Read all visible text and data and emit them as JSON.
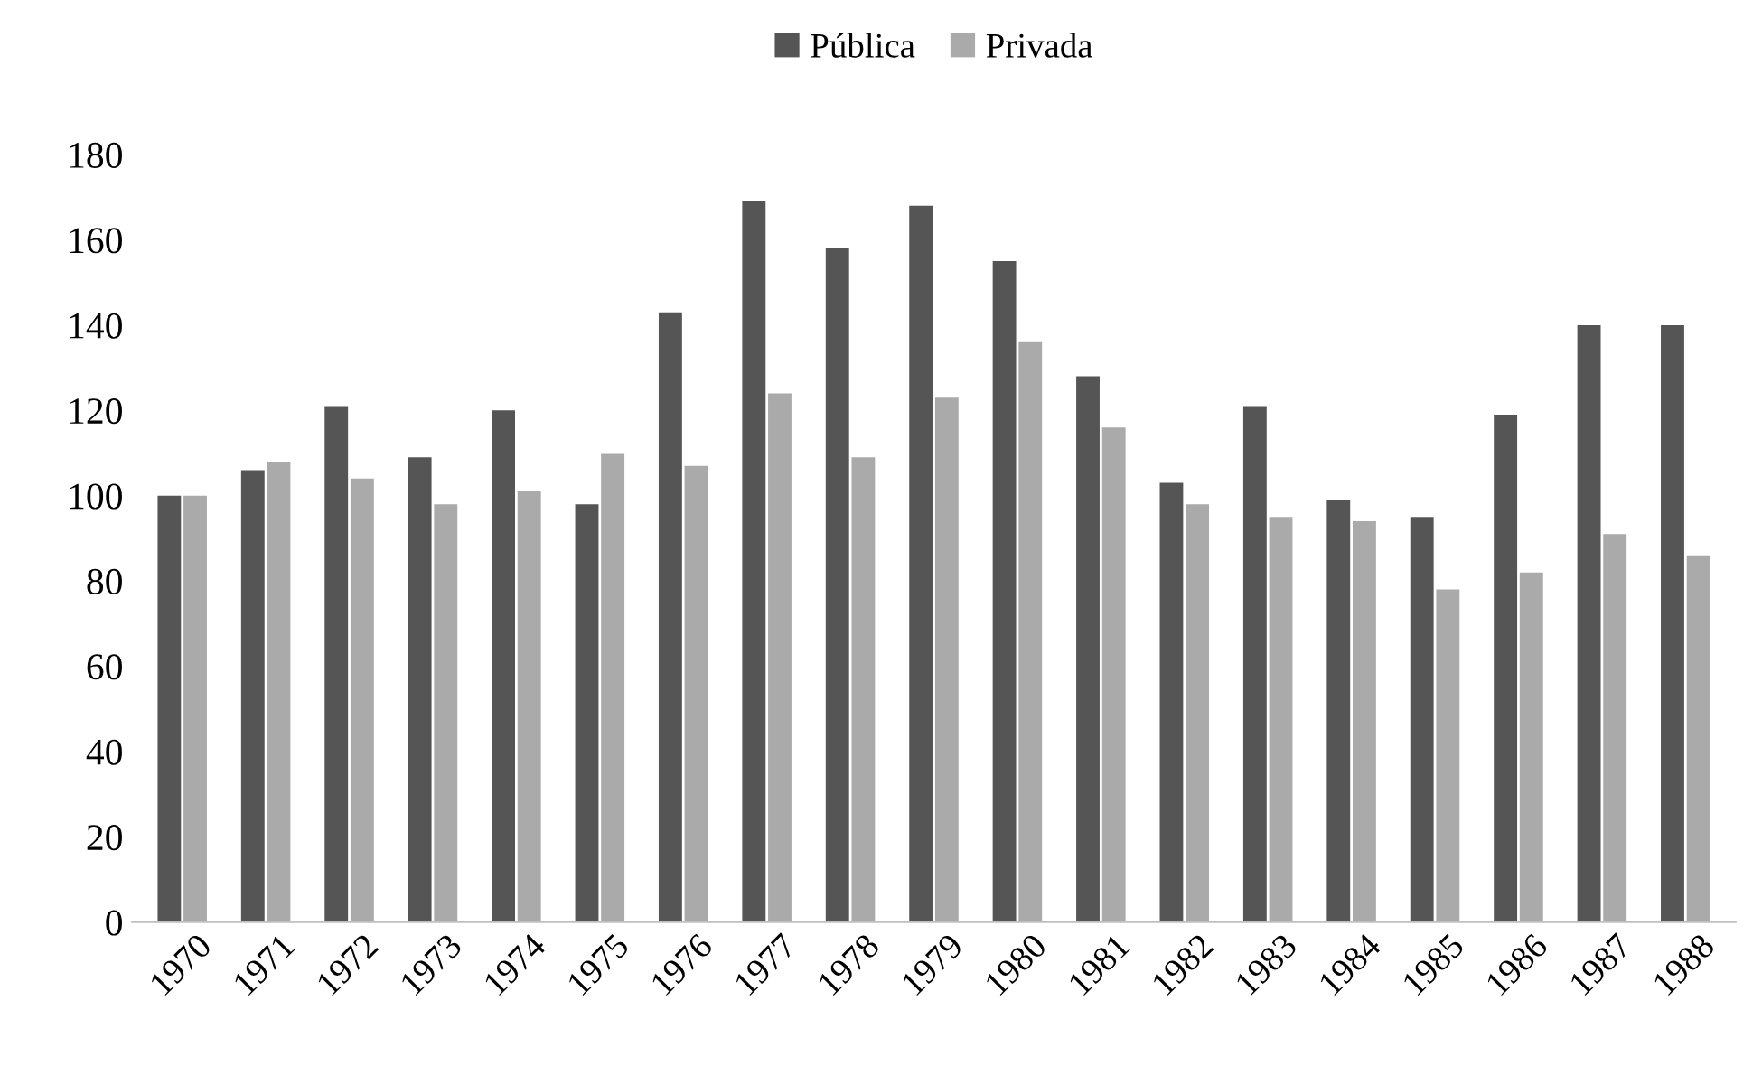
{
  "chart_data": {
    "type": "bar",
    "categories": [
      "1970",
      "1971",
      "1972",
      "1973",
      "1974",
      "1975",
      "1976",
      "1977",
      "1978",
      "1979",
      "1980",
      "1981",
      "1982",
      "1983",
      "1984",
      "1985",
      "1986",
      "1987",
      "1988"
    ],
    "series": [
      {
        "name": "Pública",
        "color": "#555555",
        "values": [
          100,
          106,
          121,
          109,
          120,
          98,
          143,
          169,
          158,
          168,
          155,
          128,
          103,
          121,
          99,
          95,
          119,
          140,
          140
        ]
      },
      {
        "name": "Privada",
        "color": "#aaaaaa",
        "values": [
          100,
          108,
          104,
          98,
          101,
          110,
          107,
          124,
          109,
          123,
          136,
          116,
          98,
          95,
          94,
          78,
          82,
          91,
          86
        ]
      }
    ],
    "ylim": [
      0,
      180
    ],
    "yticks": [
      0,
      20,
      40,
      60,
      80,
      100,
      120,
      140,
      160,
      180
    ],
    "grid": false,
    "legend": "top"
  }
}
